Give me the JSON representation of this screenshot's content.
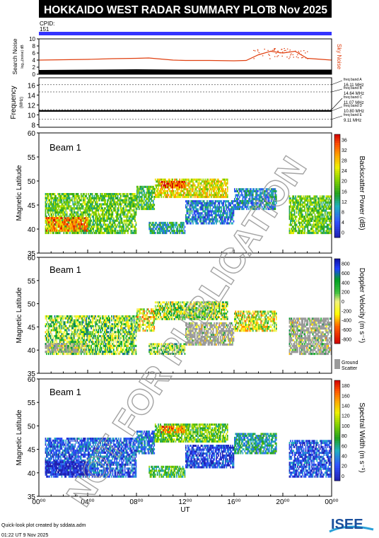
{
  "header": {
    "title": "HOKKAIDO WEST RADAR SUMMARY PLOT",
    "date": "8 Nov 2025",
    "cpid_label": "CPID:",
    "cpid_value": "151"
  },
  "watermark": "NOT FOR PUBLICATION",
  "colors": {
    "title_bar": "#000000",
    "cpid_bar": "#3333ff",
    "sky_noise": "#e04010",
    "search_noise": "#000000",
    "ground_scatter": "#9a9a9a"
  },
  "noise_panel": {
    "ylabel_line1": "Search Noise",
    "ylabel_line2": "log₁₀(noise) dB",
    "right_label": "Sky Noise",
    "ticks": [
      "0",
      "2",
      "4",
      "6",
      "8",
      "10"
    ]
  },
  "freq_panel": {
    "ylabel": "Frequency",
    "yunit": "(MHz)",
    "ticks": [
      "8",
      "10",
      "12",
      "14",
      "16"
    ],
    "bands": [
      {
        "name": "freq band A",
        "value": "16.11 MHz"
      },
      {
        "name": "freq band B",
        "value": "14.64 MHz"
      },
      {
        "name": "freq band C",
        "value": "11.07 MHz"
      },
      {
        "name": "freq band D",
        "value": "10.80 MHz"
      },
      {
        "name": "freq band E",
        "value": "9.11 MHz"
      }
    ]
  },
  "panels": [
    {
      "beam_label": "Beam  1",
      "ylabel": "Magnetic Latitude",
      "yticks": [
        "35",
        "40",
        "45",
        "50",
        "55",
        "60"
      ],
      "cbar_label": "Backscatter Power (dB)",
      "cbar_ticks": [
        "0",
        "4",
        "8",
        "12",
        "16",
        "20",
        "24",
        "28",
        "32",
        "36"
      ]
    },
    {
      "beam_label": "Beam  1",
      "ylabel": "Magnetic Latitude",
      "yticks": [
        "35",
        "40",
        "45",
        "50",
        "55",
        "60"
      ],
      "cbar_label": "Doppler Velocity (m s⁻¹)",
      "cbar_ticks": [
        "-800",
        "-600",
        "-400",
        "-200",
        "0",
        "200",
        "400",
        "600",
        "800"
      ],
      "ground_label_1": "Ground",
      "ground_label_2": "Scatter"
    },
    {
      "beam_label": "Beam  1",
      "ylabel": "Magnetic Latitude",
      "yticks": [
        "35",
        "40",
        "45",
        "50",
        "55",
        "60"
      ],
      "cbar_label": "Spectral Width (m s⁻¹)",
      "cbar_ticks": [
        "0",
        "20",
        "40",
        "60",
        "80",
        "100",
        "120",
        "140",
        "160",
        "180"
      ]
    }
  ],
  "xaxis": {
    "label": "UT",
    "ticks": [
      "00⁰⁰",
      "04⁰⁰",
      "08⁰⁰",
      "12⁰⁰",
      "16⁰⁰",
      "20⁰⁰",
      "00⁰⁰"
    ]
  },
  "footer": {
    "credit": "Quick-look plot created by sddata.adm",
    "timestamp": "01:22 UT  9 Nov 2025",
    "logo_text": "ISEE"
  },
  "chart_data": [
    {
      "type": "line",
      "title": "",
      "xlabel": "",
      "ylabel": "Search Noise",
      "xlim": [
        0,
        24
      ],
      "ylim": [
        0,
        10
      ],
      "series": [
        {
          "name": "Sky Noise",
          "x": [
            0,
            2,
            4,
            6,
            8,
            9,
            10,
            11,
            12,
            14,
            16,
            17,
            18,
            19,
            20,
            21,
            22,
            24
          ],
          "values": [
            4.0,
            4.1,
            4.2,
            4.4,
            4.5,
            4.6,
            4.3,
            4.0,
            3.9,
            3.9,
            3.8,
            3.9,
            5.5,
            6.5,
            6.0,
            6.5,
            4.5,
            4.0
          ]
        },
        {
          "name": "Search Noise",
          "x": [
            0,
            4,
            8,
            12,
            16,
            20,
            24
          ],
          "values": [
            1.2,
            1.3,
            1.4,
            1.3,
            1.3,
            1.3,
            1.3
          ]
        }
      ]
    },
    {
      "type": "line",
      "title": "",
      "xlabel": "",
      "ylabel": "Frequency (MHz)",
      "xlim": [
        0,
        24
      ],
      "ylim": [
        7.5,
        17.5
      ],
      "series": [
        {
          "name": "",
          "x": [
            0,
            24
          ],
          "values": [
            10.8,
            10.8
          ]
        }
      ]
    },
    {
      "type": "heatmap",
      "title": "",
      "xlabel": "",
      "ylabel": "Magnetic Latitude",
      "xlim": [
        0,
        24
      ],
      "ylim": [
        35,
        60
      ],
      "colorbar": {
        "label": "Backscatter Power (dB)",
        "range": [
          0,
          36
        ]
      },
      "regions": [
        {
          "x": [
            0.5,
            8.0
          ],
          "lat": [
            39.0,
            47.5
          ],
          "value": 18
        },
        {
          "x": [
            0.5,
            4.0
          ],
          "lat": [
            39.5,
            42.5
          ],
          "value": 30
        },
        {
          "x": [
            8.0,
            9.5
          ],
          "lat": [
            44.0,
            49.0
          ],
          "value": 16
        },
        {
          "x": [
            9.5,
            15.5
          ],
          "lat": [
            46.5,
            50.5
          ],
          "value": 24
        },
        {
          "x": [
            10.0,
            12.0
          ],
          "lat": [
            48.5,
            50.0
          ],
          "value": 34
        },
        {
          "x": [
            12.0,
            16.0
          ],
          "lat": [
            41.0,
            46.0
          ],
          "value": 8
        },
        {
          "x": [
            16.0,
            19.5
          ],
          "lat": [
            44.0,
            48.5
          ],
          "value": 10
        },
        {
          "x": [
            20.5,
            24.0
          ],
          "lat": [
            39.0,
            47.0
          ],
          "value": 18
        },
        {
          "x": [
            9.0,
            12.0
          ],
          "lat": [
            39.0,
            41.5
          ],
          "value": 12
        }
      ]
    },
    {
      "type": "heatmap",
      "title": "",
      "xlabel": "",
      "ylabel": "Magnetic Latitude",
      "xlim": [
        0,
        24
      ],
      "ylim": [
        35,
        60
      ],
      "colorbar": {
        "label": "Doppler Velocity (m s⁻¹)",
        "range": [
          -800,
          800
        ]
      },
      "regions": [
        {
          "x": [
            0.5,
            8.0
          ],
          "lat": [
            39.0,
            47.5
          ],
          "value": 100
        },
        {
          "x": [
            0.5,
            4.0
          ],
          "lat": [
            39.5,
            41.5
          ],
          "value": 0,
          "ground_scatter": true
        },
        {
          "x": [
            8.0,
            9.5
          ],
          "lat": [
            44.0,
            49.0
          ],
          "value": -100
        },
        {
          "x": [
            9.5,
            15.5
          ],
          "lat": [
            46.5,
            50.5
          ],
          "value": 50
        },
        {
          "x": [
            12.0,
            16.0
          ],
          "lat": [
            41.0,
            46.0
          ],
          "value": 0,
          "ground_scatter": true
        },
        {
          "x": [
            16.0,
            19.5
          ],
          "lat": [
            44.0,
            48.5
          ],
          "value": -50
        },
        {
          "x": [
            20.5,
            24.0
          ],
          "lat": [
            39.0,
            47.0
          ],
          "value": 0,
          "ground_scatter": true
        },
        {
          "x": [
            9.0,
            12.0
          ],
          "lat": [
            39.0,
            41.5
          ],
          "value": 100
        }
      ]
    },
    {
      "type": "heatmap",
      "title": "",
      "xlabel": "UT",
      "ylabel": "Magnetic Latitude",
      "xlim": [
        0,
        24
      ],
      "ylim": [
        35,
        60
      ],
      "colorbar": {
        "label": "Spectral Width (m s⁻¹)",
        "range": [
          0,
          180
        ]
      },
      "regions": [
        {
          "x": [
            0.5,
            8.0
          ],
          "lat": [
            39.0,
            47.5
          ],
          "value": 30
        },
        {
          "x": [
            0.5,
            4.0
          ],
          "lat": [
            39.5,
            42.5
          ],
          "value": 5
        },
        {
          "x": [
            8.0,
            9.5
          ],
          "lat": [
            44.0,
            49.0
          ],
          "value": 40
        },
        {
          "x": [
            9.5,
            15.5
          ],
          "lat": [
            46.5,
            50.5
          ],
          "value": 90
        },
        {
          "x": [
            10.0,
            12.0
          ],
          "lat": [
            48.5,
            50.0
          ],
          "value": 150
        },
        {
          "x": [
            12.0,
            16.0
          ],
          "lat": [
            41.0,
            46.0
          ],
          "value": 20
        },
        {
          "x": [
            16.0,
            19.5
          ],
          "lat": [
            44.0,
            48.5
          ],
          "value": 60
        },
        {
          "x": [
            20.5,
            24.0
          ],
          "lat": [
            39.0,
            47.0
          ],
          "value": 25
        },
        {
          "x": [
            9.0,
            12.0
          ],
          "lat": [
            39.0,
            41.5
          ],
          "value": 80
        }
      ]
    }
  ]
}
